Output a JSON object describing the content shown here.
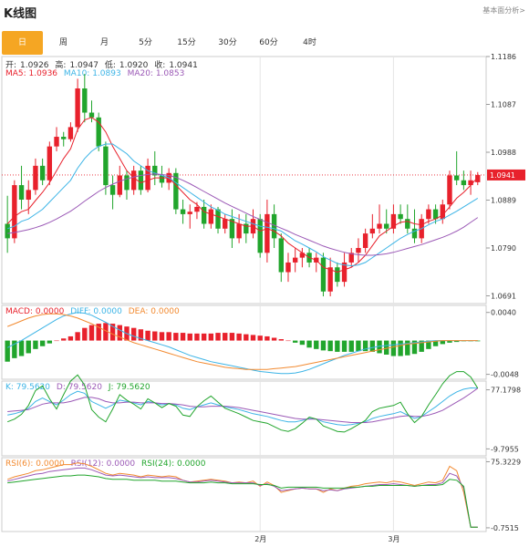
{
  "header": {
    "title": "K线图",
    "link": "基本面分析>"
  },
  "tabs": [
    "日",
    "周",
    "月",
    "5分",
    "15分",
    "30分",
    "60分",
    "4时"
  ],
  "active_tab": 0,
  "ohlc_legend": {
    "open_label": "开:",
    "open": "1.0926",
    "high_label": "高:",
    "high": "1.0947",
    "low_label": "低:",
    "low": "1.0920",
    "close_label": "收:",
    "close": "1.0941"
  },
  "ma_legend": {
    "ma5": "MA5: 1.0936",
    "ma10": "MA10: 1.0893",
    "ma20": "MA20: 1.0853"
  },
  "macd_legend": {
    "macd": "MACD: 0.0000",
    "diff": "DIFF: 0.0000",
    "dea": "DEA: 0.0000"
  },
  "kdj_legend": {
    "k": "K: 79.5620",
    "d": "D: 79.5620",
    "j": "J: 79.5620"
  },
  "rsi_legend": {
    "rsi6": "RSI(6): 0.0000",
    "rsi12": "RSI(12): 0.0000",
    "rsi24": "RSI(24): 0.0000"
  },
  "colors": {
    "up": "#e8212c",
    "down": "#21a52c",
    "ma5": "#e8212c",
    "ma10": "#3cb4e6",
    "ma20": "#9b59b6",
    "accent": "#f5a623",
    "diff": "#3cb4e6",
    "dea": "#f28a30"
  },
  "chart_data": [
    {
      "type": "candlestick",
      "title": "",
      "y_ticks": [
        "1.1186",
        "1.1087",
        "1.0988",
        "1.0889",
        "1.0790",
        "1.0691"
      ],
      "ylim": [
        1.0675,
        1.1186
      ],
      "last_price": "1.0941",
      "x_ticks": [
        "2月",
        "3月"
      ],
      "candles": [
        [
          1.084,
          1.0898,
          1.078,
          1.081
        ],
        [
          1.081,
          1.093,
          1.08,
          1.092
        ],
        [
          1.092,
          1.096,
          1.087,
          1.089
        ],
        [
          1.089,
          1.093,
          1.086,
          1.091
        ],
        [
          1.091,
          1.0975,
          1.09,
          1.096
        ],
        [
          1.096,
          1.0975,
          1.092,
          1.093
        ],
        [
          1.093,
          1.101,
          1.092,
          1.1
        ],
        [
          1.1,
          1.104,
          1.099,
          1.102
        ],
        [
          1.102,
          1.103,
          1.1,
          1.1015
        ],
        [
          1.1015,
          1.105,
          1.101,
          1.104
        ],
        [
          1.104,
          1.114,
          1.103,
          1.112
        ],
        [
          1.112,
          1.115,
          1.105,
          1.107
        ],
        [
          1.107,
          1.1095,
          1.105,
          1.106
        ],
        [
          1.106,
          1.107,
          1.099,
          1.1
        ],
        [
          1.1,
          1.101,
          1.09,
          1.092
        ],
        [
          1.092,
          1.094,
          1.087,
          1.09
        ],
        [
          1.09,
          1.096,
          1.0895,
          1.094
        ],
        [
          1.094,
          1.095,
          1.089,
          1.091
        ],
        [
          1.091,
          1.096,
          1.09,
          1.095
        ],
        [
          1.095,
          1.096,
          1.09,
          1.091
        ],
        [
          1.091,
          1.0975,
          1.0905,
          1.096
        ],
        [
          1.096,
          1.099,
          1.092,
          1.094
        ],
        [
          1.094,
          1.096,
          1.0915,
          1.0925
        ],
        [
          1.0925,
          1.0955,
          1.091,
          1.0945
        ],
        [
          1.0945,
          1.0955,
          1.086,
          1.087
        ],
        [
          1.087,
          1.089,
          1.084,
          1.086
        ],
        [
          1.086,
          1.088,
          1.083,
          1.0865
        ],
        [
          1.0865,
          1.0885,
          1.085,
          1.0875
        ],
        [
          1.0875,
          1.089,
          1.083,
          1.084
        ],
        [
          1.084,
          1.088,
          1.083,
          1.087
        ],
        [
          1.087,
          1.0875,
          1.082,
          1.083
        ],
        [
          1.083,
          1.086,
          1.082,
          1.085
        ],
        [
          1.085,
          1.087,
          1.079,
          1.081
        ],
        [
          1.081,
          1.086,
          1.08,
          1.084
        ],
        [
          1.084,
          1.086,
          1.08,
          1.082
        ],
        [
          1.082,
          1.087,
          1.081,
          1.085
        ],
        [
          1.085,
          1.086,
          1.077,
          1.078
        ],
        [
          1.078,
          1.089,
          1.076,
          1.086
        ],
        [
          1.086,
          1.088,
          1.079,
          1.081
        ],
        [
          1.081,
          1.082,
          1.072,
          1.074
        ],
        [
          1.074,
          1.078,
          1.072,
          1.076
        ],
        [
          1.076,
          1.079,
          1.074,
          1.077
        ],
        [
          1.077,
          1.079,
          1.075,
          1.078
        ],
        [
          1.078,
          1.079,
          1.075,
          1.076
        ],
        [
          1.076,
          1.078,
          1.074,
          1.077
        ],
        [
          1.077,
          1.078,
          1.069,
          1.07
        ],
        [
          1.07,
          1.077,
          1.069,
          1.075
        ],
        [
          1.075,
          1.076,
          1.071,
          1.072
        ],
        [
          1.072,
          1.078,
          1.071,
          1.076
        ],
        [
          1.076,
          1.079,
          1.075,
          1.078
        ],
        [
          1.078,
          1.081,
          1.076,
          1.079
        ],
        [
          1.079,
          1.083,
          1.078,
          1.082
        ],
        [
          1.082,
          1.086,
          1.081,
          1.083
        ],
        [
          1.083,
          1.088,
          1.082,
          1.084
        ],
        [
          1.084,
          1.087,
          1.082,
          1.083
        ],
        [
          1.083,
          1.088,
          1.082,
          1.086
        ],
        [
          1.086,
          1.088,
          1.084,
          1.085
        ],
        [
          1.085,
          1.088,
          1.082,
          1.083
        ],
        [
          1.083,
          1.087,
          1.08,
          1.081
        ],
        [
          1.081,
          1.086,
          1.08,
          1.085
        ],
        [
          1.085,
          1.088,
          1.084,
          1.087
        ],
        [
          1.087,
          1.088,
          1.084,
          1.085
        ],
        [
          1.085,
          1.089,
          1.084,
          1.088
        ],
        [
          1.088,
          1.095,
          1.087,
          1.094
        ],
        [
          1.094,
          1.099,
          1.092,
          1.093
        ],
        [
          1.093,
          1.095,
          1.091,
          1.092
        ],
        [
          1.092,
          1.095,
          1.09,
          1.093
        ],
        [
          1.0926,
          1.0947,
          1.092,
          1.0941
        ]
      ],
      "ma5": [
        1.084,
        1.0855,
        1.0865,
        1.087,
        1.0888,
        1.0905,
        1.0925,
        1.095,
        1.0975,
        1.0995,
        1.1035,
        1.1055,
        1.106,
        1.105,
        1.103,
        1.1,
        1.0975,
        1.095,
        1.0935,
        1.0925,
        1.093,
        1.0935,
        1.0935,
        1.0935,
        1.092,
        1.0905,
        1.089,
        1.088,
        1.0865,
        1.086,
        1.0855,
        1.085,
        1.0845,
        1.084,
        1.0835,
        1.0835,
        1.0825,
        1.083,
        1.0825,
        1.0815,
        1.08,
        1.079,
        1.078,
        1.077,
        1.0765,
        1.075,
        1.0745,
        1.074,
        1.0745,
        1.075,
        1.076,
        1.0775,
        1.0795,
        1.0815,
        1.0825,
        1.0835,
        1.0843,
        1.0845,
        1.084,
        1.0838,
        1.0845,
        1.085,
        1.0858,
        1.0875,
        1.0893,
        1.0905,
        1.092,
        1.0936
      ],
      "ma10": [
        1.083,
        1.0835,
        1.0845,
        1.085,
        1.086,
        1.087,
        1.0885,
        1.09,
        1.0915,
        1.093,
        1.0955,
        1.0975,
        1.099,
        1.1,
        1.1005,
        1.1005,
        1.0995,
        1.0985,
        1.097,
        1.096,
        1.095,
        1.0945,
        1.094,
        1.0935,
        1.0925,
        1.0915,
        1.0905,
        1.0895,
        1.0885,
        1.0875,
        1.0868,
        1.086,
        1.0855,
        1.085,
        1.0845,
        1.084,
        1.0835,
        1.0833,
        1.083,
        1.0825,
        1.0815,
        1.0805,
        1.0798,
        1.079,
        1.0782,
        1.0772,
        1.0765,
        1.0758,
        1.0755,
        1.0753,
        1.0755,
        1.076,
        1.077,
        1.078,
        1.079,
        1.08,
        1.081,
        1.0818,
        1.0825,
        1.083,
        1.0838,
        1.0845,
        1.085,
        1.0858,
        1.0866,
        1.0875,
        1.0884,
        1.0893
      ],
      "ma20": [
        1.082,
        1.0822,
        1.0825,
        1.0828,
        1.0832,
        1.0837,
        1.0843,
        1.085,
        1.0858,
        1.0866,
        1.0876,
        1.0887,
        1.0897,
        1.0907,
        1.0915,
        1.0922,
        1.0928,
        1.0933,
        1.0937,
        1.094,
        1.0942,
        1.0943,
        1.0942,
        1.094,
        1.0936,
        1.093,
        1.0923,
        1.0915,
        1.0907,
        1.0899,
        1.0891,
        1.0883,
        1.0876,
        1.0869,
        1.0862,
        1.0855,
        1.0849,
        1.0843,
        1.0837,
        1.0831,
        1.0825,
        1.0818,
        1.0812,
        1.0806,
        1.08,
        1.0794,
        1.0789,
        1.0785,
        1.0781,
        1.0778,
        1.0776,
        1.0775,
        1.0775,
        1.0776,
        1.0778,
        1.0781,
        1.0785,
        1.0789,
        1.0793,
        1.0797,
        1.0802,
        1.0807,
        1.0812,
        1.0818,
        1.0825,
        1.0833,
        1.0843,
        1.0853
      ]
    },
    {
      "type": "bar",
      "title": "MACD",
      "y_ticks": [
        "0.0040",
        "-0.0048"
      ],
      "ylim": [
        -0.0055,
        0.005
      ],
      "histogram": [
        -0.003,
        -0.0025,
        -0.0022,
        -0.0018,
        -0.0012,
        -0.0008,
        -0.0004,
        0.0,
        0.0003,
        0.0006,
        0.0012,
        0.0018,
        0.0022,
        0.0024,
        0.0025,
        0.0024,
        0.0022,
        0.002,
        0.0018,
        0.0016,
        0.0014,
        0.0013,
        0.0012,
        0.0012,
        0.0011,
        0.0011,
        0.001,
        0.001,
        0.001,
        0.001,
        0.0011,
        0.0011,
        0.0011,
        0.001,
        0.0009,
        0.0008,
        0.0007,
        0.0006,
        0.0004,
        0.0002,
        0.0,
        -0.0003,
        -0.0006,
        -0.001,
        -0.0012,
        -0.0014,
        -0.0015,
        -0.0016,
        -0.0016,
        -0.0016,
        -0.0015,
        -0.0015,
        -0.0016,
        -0.0018,
        -0.002,
        -0.0022,
        -0.0022,
        -0.0021,
        -0.0019,
        -0.0016,
        -0.0012,
        -0.0008,
        -0.0005,
        -0.0003,
        -0.0002,
        -0.0001,
        -0.0001,
        -0.0001
      ],
      "diff": [
        -0.001,
        -0.0005,
        0.0,
        0.0006,
        0.0012,
        0.0018,
        0.0024,
        0.003,
        0.0035,
        0.0038,
        0.004,
        0.0039,
        0.0036,
        0.0031,
        0.0026,
        0.002,
        0.0015,
        0.001,
        0.0006,
        0.0003,
        0.0,
        -0.0003,
        -0.0006,
        -0.0009,
        -0.0013,
        -0.0017,
        -0.0021,
        -0.0024,
        -0.0027,
        -0.003,
        -0.0032,
        -0.0034,
        -0.0036,
        -0.0038,
        -0.004,
        -0.0042,
        -0.0044,
        -0.0045,
        -0.0046,
        -0.0047,
        -0.0047,
        -0.0046,
        -0.0044,
        -0.0041,
        -0.0037,
        -0.0033,
        -0.0029,
        -0.0025,
        -0.0021,
        -0.0018,
        -0.0015,
        -0.0012,
        -0.001,
        -0.0008,
        -0.0007,
        -0.0006,
        -0.0005,
        -0.0004,
        -0.0003,
        -0.0002,
        -0.0001,
        0.0,
        0.0,
        0.0,
        0.0,
        0.0,
        0.0,
        0.0
      ],
      "dea": [
        0.002,
        0.0024,
        0.0028,
        0.0032,
        0.0035,
        0.0037,
        0.0038,
        0.0038,
        0.0037,
        0.0035,
        0.0032,
        0.0028,
        0.0024,
        0.0019,
        0.0014,
        0.0009,
        0.0005,
        0.0001,
        -0.0003,
        -0.0006,
        -0.0009,
        -0.0012,
        -0.0015,
        -0.0018,
        -0.0021,
        -0.0024,
        -0.0027,
        -0.003,
        -0.0032,
        -0.0034,
        -0.0036,
        -0.0038,
        -0.0039,
        -0.004,
        -0.0041,
        -0.0041,
        -0.0041,
        -0.0041,
        -0.004,
        -0.0039,
        -0.0038,
        -0.0037,
        -0.0035,
        -0.0033,
        -0.0031,
        -0.0029,
        -0.0027,
        -0.0025,
        -0.0023,
        -0.0021,
        -0.0019,
        -0.0017,
        -0.0015,
        -0.0013,
        -0.0011,
        -0.0009,
        -0.0007,
        -0.0005,
        -0.0004,
        -0.0003,
        -0.0002,
        -0.0001,
        0.0,
        0.0,
        0.0,
        0.0,
        0.0,
        0.0
      ]
    },
    {
      "type": "line",
      "title": "KDJ",
      "y_ticks": [
        "77.1798",
        "-9.7955"
      ],
      "ylim": [
        -20,
        90
      ],
      "k": [
        40,
        42,
        45,
        50,
        60,
        65,
        60,
        55,
        62,
        70,
        75,
        72,
        60,
        55,
        50,
        55,
        62,
        60,
        58,
        55,
        60,
        58,
        55,
        57,
        55,
        50,
        48,
        52,
        55,
        58,
        55,
        52,
        50,
        48,
        45,
        42,
        40,
        38,
        35,
        32,
        30,
        30,
        32,
        35,
        34,
        30,
        28,
        26,
        25,
        26,
        28,
        30,
        35,
        38,
        40,
        42,
        45,
        40,
        35,
        38,
        45,
        52,
        60,
        68,
        74,
        78,
        80,
        79.5
      ],
      "d": [
        45,
        46,
        47,
        48,
        52,
        56,
        58,
        58,
        58,
        60,
        63,
        66,
        66,
        64,
        60,
        58,
        58,
        59,
        59,
        58,
        58,
        58,
        57,
        57,
        56,
        55,
        53,
        52,
        52,
        53,
        53,
        53,
        52,
        51,
        49,
        47,
        45,
        43,
        41,
        39,
        37,
        35,
        34,
        34,
        34,
        33,
        32,
        31,
        30,
        29,
        29,
        29,
        30,
        32,
        34,
        36,
        38,
        39,
        38,
        38,
        40,
        43,
        47,
        53,
        59,
        65,
        72,
        79.5
      ],
      "j": [
        30,
        34,
        41,
        54,
        76,
        83,
        64,
        49,
        70,
        90,
        99,
        84,
        48,
        37,
        30,
        49,
        70,
        62,
        56,
        49,
        64,
        58,
        51,
        57,
        53,
        40,
        38,
        52,
        61,
        68,
        59,
        50,
        46,
        42,
        37,
        32,
        30,
        28,
        23,
        18,
        16,
        20,
        28,
        37,
        34,
        24,
        20,
        16,
        15,
        20,
        26,
        32,
        45,
        50,
        52,
        54,
        59,
        42,
        29,
        38,
        55,
        70,
        86,
        98,
        104,
        104,
        96,
        79.5
      ]
    },
    {
      "type": "line",
      "title": "RSI",
      "y_ticks": [
        "75.3229",
        "-0.7515"
      ],
      "ylim": [
        -5,
        80
      ],
      "rsi6": [
        55,
        58,
        60,
        62,
        65,
        66,
        68,
        70,
        72,
        72,
        74,
        73,
        70,
        66,
        62,
        60,
        62,
        61,
        60,
        58,
        60,
        59,
        58,
        59,
        58,
        54,
        52,
        53,
        54,
        55,
        54,
        53,
        51,
        52,
        51,
        53,
        47,
        52,
        48,
        40,
        42,
        44,
        45,
        44,
        44,
        40,
        44,
        42,
        45,
        47,
        48,
        50,
        51,
        52,
        51,
        53,
        52,
        50,
        48,
        50,
        52,
        51,
        54,
        70,
        65,
        40,
        0,
        0
      ],
      "rsi12": [
        53,
        55,
        57,
        59,
        61,
        62,
        64,
        65,
        66,
        67,
        68,
        68,
        66,
        63,
        60,
        59,
        60,
        59,
        58,
        57,
        58,
        57,
        57,
        57,
        56,
        54,
        52,
        52,
        53,
        54,
        53,
        52,
        51,
        51,
        51,
        51,
        48,
        50,
        47,
        42,
        43,
        44,
        45,
        44,
        44,
        42,
        43,
        42,
        44,
        45,
        46,
        47,
        48,
        49,
        49,
        50,
        49,
        48,
        47,
        48,
        49,
        49,
        51,
        62,
        59,
        45,
        0,
        0
      ],
      "rsi24": [
        51,
        52,
        53,
        54,
        55,
        56,
        57,
        58,
        59,
        59,
        60,
        60,
        59,
        58,
        56,
        55,
        55,
        55,
        54,
        54,
        54,
        54,
        53,
        53,
        53,
        52,
        51,
        51,
        51,
        52,
        51,
        51,
        50,
        50,
        50,
        50,
        49,
        49,
        48,
        45,
        46,
        46,
        46,
        46,
        46,
        45,
        45,
        45,
        45,
        46,
        46,
        47,
        47,
        48,
        48,
        48,
        48,
        48,
        47,
        48,
        48,
        48,
        49,
        55,
        54,
        47,
        0,
        0
      ]
    }
  ]
}
